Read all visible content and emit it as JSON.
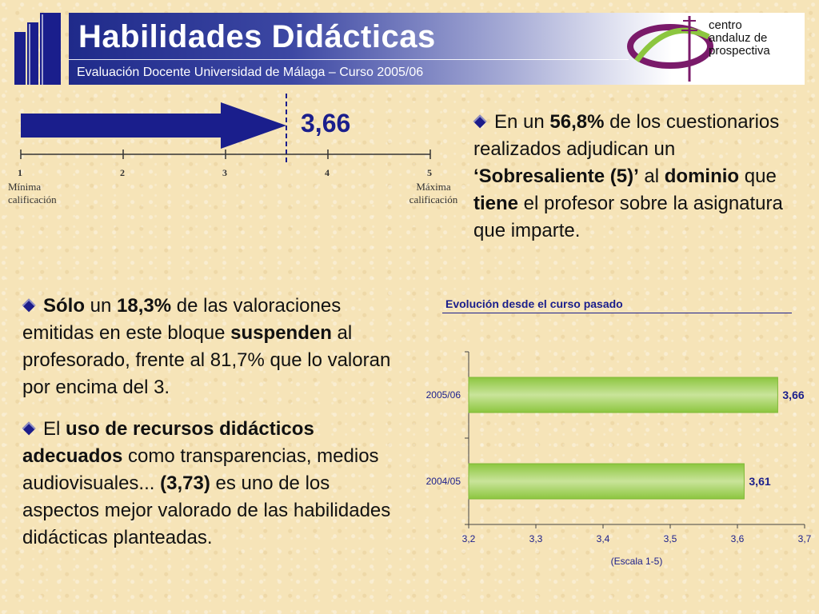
{
  "header": {
    "title": "Habilidades Didácticas",
    "subtitle": "Evaluación Docente Universidad de Málaga – Curso 2005/06",
    "logo_text": [
      "centro",
      "andaluz de",
      "prospectiva"
    ]
  },
  "scale": {
    "score": "3,66",
    "score_value": 3.66,
    "ticks": [
      "1",
      "2",
      "3",
      "4",
      "5"
    ],
    "min_caption": [
      "Mínima",
      "calificación"
    ],
    "max_caption": [
      "Máxima",
      "calificación"
    ]
  },
  "text": {
    "p1": [
      {
        "t": "En un ",
        "b": false
      },
      {
        "t": "56,8%",
        "b": true
      },
      {
        "t": " de los cuestionarios realizados adjudican un ",
        "b": false
      },
      {
        "t": "‘Sobresaliente (5)’",
        "b": true
      },
      {
        "t": " al ",
        "b": false
      },
      {
        "t": "dominio",
        "b": true
      },
      {
        "t": " que ",
        "b": false
      },
      {
        "t": "tiene",
        "b": true
      },
      {
        "t": " el profesor sobre la asignatura que imparte.",
        "b": false
      }
    ],
    "p2": [
      {
        "t": "Sólo",
        "b": true
      },
      {
        "t": " un ",
        "b": false
      },
      {
        "t": "18,3%",
        "b": true
      },
      {
        "t": " de las valoraciones emitidas en este bloque ",
        "b": false
      },
      {
        "t": "suspenden",
        "b": true
      },
      {
        "t": " al profesorado, frente al 81,7% que lo valoran por encima del 3.",
        "b": false
      }
    ],
    "p3": [
      {
        "t": "El ",
        "b": false
      },
      {
        "t": "uso de recursos didácticos adecuados",
        "b": true
      },
      {
        "t": " como transparencias, medios audiovisuales... ",
        "b": false
      },
      {
        "t": "(3,73)",
        "b": true
      },
      {
        "t": " es uno de los aspectos mejor valorado de las habilidades didácticas planteadas.",
        "b": false
      }
    ]
  },
  "chart_data": {
    "type": "bar",
    "orientation": "horizontal",
    "title": "Evolución desde el curso pasado",
    "xlabel": "(Escala 1-5)",
    "categories": [
      "2005/06",
      "2004/05"
    ],
    "values": [
      3.66,
      3.61
    ],
    "value_labels": [
      "3,66",
      "3,61"
    ],
    "xlim": [
      3.2,
      3.7
    ],
    "xticks": [
      "3,2",
      "3,3",
      "3,4",
      "3,5",
      "3,6",
      "3,7"
    ],
    "bar_color": "#8cc63f",
    "grid": false
  }
}
